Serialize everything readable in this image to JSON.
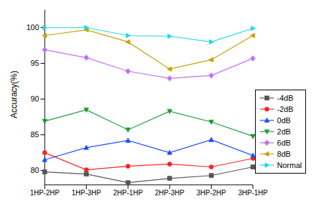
{
  "chart_data": {
    "type": "line",
    "y_label": "Accuracy(%)",
    "categories": [
      "1HP-2HP",
      "1HP-3HP",
      "2HP-1HP",
      "2HP-3HP",
      "3HP-2HP",
      "3HP-1HP"
    ],
    "ylim": [
      78,
      102.5
    ],
    "yticks": [
      80,
      85,
      90,
      95,
      100
    ],
    "grid": false,
    "legend": "right",
    "series": [
      {
        "name": "-4dB",
        "color": "#555555",
        "marker": "square",
        "values": [
          79.8,
          79.5,
          78.3,
          78.9,
          79.3,
          80.5
        ]
      },
      {
        "name": "-2dB",
        "color": "#ff2020",
        "marker": "circle",
        "values": [
          82.5,
          80.1,
          80.6,
          80.9,
          80.5,
          81.7
        ]
      },
      {
        "name": "0dB",
        "color": "#1a4fff",
        "marker": "triangle-up",
        "values": [
          81.5,
          83.2,
          84.2,
          82.5,
          84.3,
          82.1
        ]
      },
      {
        "name": "2dB",
        "color": "#1a9a3a",
        "marker": "triangle-down",
        "values": [
          86.9,
          88.5,
          85.7,
          88.3,
          86.8,
          84.8
        ]
      },
      {
        "name": "6dB",
        "color": "#c070f0",
        "marker": "diamond",
        "values": [
          96.9,
          95.8,
          93.9,
          92.9,
          93.3,
          95.7
        ]
      },
      {
        "name": "8dB",
        "color": "#c8a000",
        "marker": "triangle-left",
        "values": [
          98.9,
          99.7,
          98.0,
          94.2,
          95.5,
          98.9
        ]
      },
      {
        "name": "Normal",
        "color": "#20d8e0",
        "marker": "triangle-right",
        "values": [
          100,
          100,
          98.9,
          98.8,
          98.0,
          99.9
        ]
      }
    ]
  }
}
